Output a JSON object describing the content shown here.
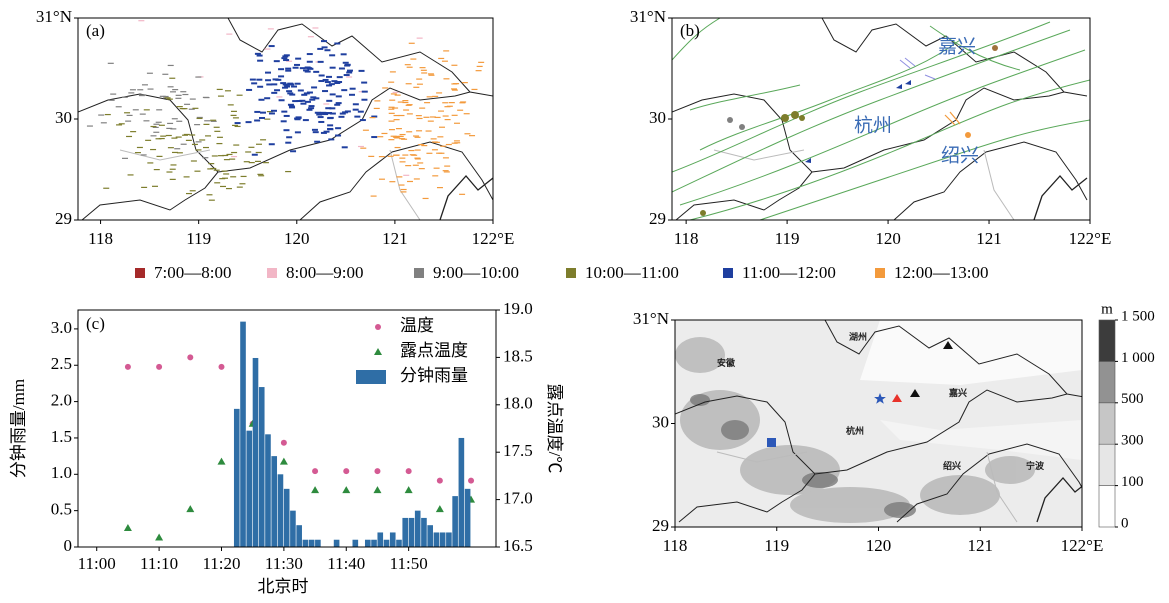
{
  "legend": {
    "items": [
      {
        "label": "7:00—8:00",
        "color": "#a52a2a"
      },
      {
        "label": "8:00—9:00",
        "color": "#f2b6c6"
      },
      {
        "label": "9:00—10:00",
        "color": "#808080"
      },
      {
        "label": "10:00—11:00",
        "color": "#7d7d2c"
      },
      {
        "label": "11:00—12:00",
        "color": "#1f3f9f"
      },
      {
        "label": "12:00—13:00",
        "color": "#f39a3c"
      }
    ]
  },
  "maps": [
    {
      "panel_label": "(a)",
      "xlim": [
        117.77,
        122
      ],
      "ylim": [
        29,
        31
      ],
      "xticks": [
        118,
        119,
        120,
        121,
        {
          "value": 122,
          "label": "122°E"
        }
      ],
      "yticks": [
        29,
        30,
        {
          "value": 31,
          "label": "31°N"
        }
      ]
    },
    {
      "panel_label": "(b)",
      "xlim": [
        117.86,
        122
      ],
      "ylim": [
        29,
        31
      ],
      "xticks": [
        118,
        119,
        120,
        121,
        {
          "value": 122,
          "label": "122°E"
        }
      ],
      "yticks": [
        29,
        30,
        {
          "value": 31,
          "label": "31°N"
        }
      ],
      "places": [
        "嘉兴",
        "杭州",
        "绍兴"
      ]
    },
    {
      "xlim": [
        118,
        122
      ],
      "ylim": [
        29,
        31
      ],
      "xticks": [
        118,
        119,
        120,
        121,
        {
          "value": 122,
          "label": "122°E"
        }
      ],
      "yticks": [
        29,
        30,
        {
          "value": 31,
          "label": "31°N"
        }
      ],
      "places": [
        "湖州",
        "安徽",
        "嘉兴",
        "杭州",
        "绍兴",
        "宁波"
      ],
      "colorbar": {
        "unit": "m",
        "ticks": [
          0,
          100,
          300,
          500,
          {
            "value": 1000,
            "label": "1 000"
          },
          {
            "value": 1500,
            "label": "1 500"
          }
        ],
        "colors": [
          "#ffffff",
          "#e6e6e6",
          "#c6c6c6",
          "#929292",
          "#3c3c3c"
        ]
      }
    }
  ],
  "chart_data": {
    "type": "bar",
    "panel_label": "(c)",
    "xlabel": "北京时",
    "ylabel": "分钟雨量/mm",
    "y2label": "露点温度/℃",
    "xlim": [
      "10:57",
      "12:04"
    ],
    "xticks": [
      "11:00",
      "11:10",
      "11:20",
      "11:30",
      "11:40",
      "11:50"
    ],
    "ylim": [
      0,
      3.26
    ],
    "yticks": [
      0,
      0.5,
      {
        "value": 1,
        "label": "1.0"
      },
      1.5,
      {
        "value": 2,
        "label": "2.0"
      },
      2.5,
      {
        "value": 3,
        "label": "3.0"
      }
    ],
    "y2lim": [
      16.5,
      19.0
    ],
    "y2ticks": [
      16.5,
      {
        "value": 17,
        "label": "17.0"
      },
      17.5,
      {
        "value": 18,
        "label": "18.0"
      },
      18.5,
      {
        "value": 19,
        "label": "19.0"
      }
    ],
    "series": [
      {
        "name": "温度",
        "type": "scatter",
        "marker": "circle",
        "color": "#d45a93",
        "axis": "y2",
        "x": [
          "11:05",
          "11:10",
          "11:15",
          "11:20",
          "11:25",
          "11:30",
          "11:35",
          "11:40",
          "11:45",
          "11:50",
          "11:55",
          "12:00"
        ],
        "values": [
          18.4,
          18.4,
          18.5,
          18.4,
          17.8,
          17.6,
          17.3,
          17.3,
          17.3,
          17.3,
          17.2,
          17.2
        ]
      },
      {
        "name": "露点温度",
        "type": "scatter",
        "marker": "triangle",
        "color": "#2e8b3e",
        "axis": "y2",
        "x": [
          "11:05",
          "11:10",
          "11:15",
          "11:20",
          "11:25",
          "11:30",
          "11:35",
          "11:40",
          "11:45",
          "11:50",
          "11:55",
          "12:00"
        ],
        "values": [
          16.7,
          16.6,
          16.9,
          17.4,
          17.8,
          17.4,
          17.1,
          17.1,
          17.1,
          17.1,
          16.9,
          17.0
        ]
      },
      {
        "name": "分钟雨量",
        "type": "bar",
        "color": "#2f6ea6",
        "x": [
          "11:22",
          "11:23",
          "11:24",
          "11:25",
          "11:26",
          "11:27",
          "11:28",
          "11:29",
          "11:30",
          "11:31",
          "11:32",
          "11:33",
          "11:34",
          "11:35",
          "11:38",
          "11:41",
          "11:43",
          "11:44",
          "11:45",
          "11:46",
          "11:47",
          "11:48",
          "11:49",
          "11:50",
          "11:51",
          "11:52",
          "11:53",
          "11:54",
          "11:55",
          "11:56",
          "11:57",
          "11:58",
          "11:59"
        ],
        "values": [
          1.9,
          3.1,
          1.6,
          2.6,
          2.2,
          1.55,
          1.25,
          1.0,
          0.8,
          0.5,
          0.3,
          0.1,
          0.1,
          0.1,
          0.1,
          0.1,
          0.1,
          0.1,
          0.2,
          0.1,
          0.2,
          0.1,
          0.4,
          0.4,
          0.5,
          0.4,
          0.3,
          0.2,
          0.2,
          0.2,
          0.7,
          1.5,
          0.8
        ]
      }
    ]
  }
}
